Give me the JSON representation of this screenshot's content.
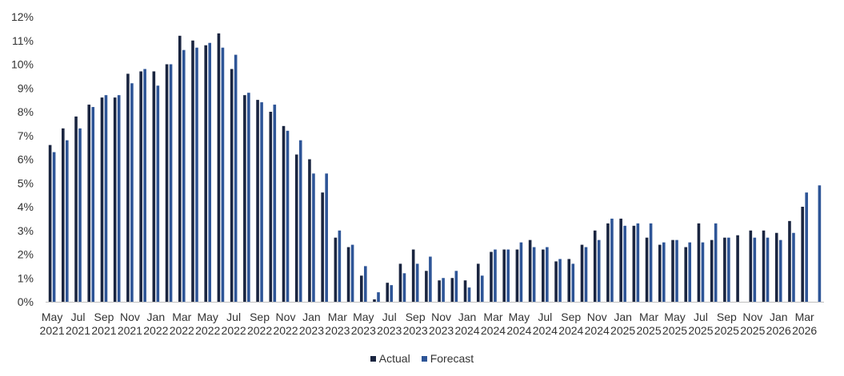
{
  "chart_data": {
    "type": "bar",
    "title": "",
    "xlabel": "",
    "ylabel": "",
    "ylim": [
      0,
      12
    ],
    "yticks": [
      "0%",
      "1%",
      "2%",
      "3%",
      "4%",
      "5%",
      "6%",
      "7%",
      "8%",
      "9%",
      "10%",
      "11%",
      "12%"
    ],
    "grid": false,
    "legend_position": "bottom",
    "categories": [
      "May 2021",
      "Jun 2021",
      "Jul 2021",
      "Aug 2021",
      "Sep 2021",
      "Oct 2021",
      "Nov 2021",
      "Dec 2021",
      "Jan 2022",
      "Feb 2022",
      "Mar 2022",
      "Apr 2022",
      "May 2022",
      "Jun 2022",
      "Jul 2022",
      "Aug 2022",
      "Sep 2022",
      "Oct 2022",
      "Nov 2022",
      "Dec 2022",
      "Jan 2023",
      "Feb 2023",
      "Mar 2023",
      "Apr 2023",
      "May 2023",
      "Jun 2023",
      "Jul 2023",
      "Aug 2023",
      "Sep 2023",
      "Oct 2023",
      "Nov 2023",
      "Dec 2023",
      "Jan 2024",
      "Feb 2024",
      "Mar 2024",
      "Apr 2024",
      "May 2024",
      "Jun 2024",
      "Jul 2024",
      "Aug 2024",
      "Sep 2024",
      "Oct 2024",
      "Nov 2024",
      "Dec 2024",
      "Jan 2025",
      "Feb 2025",
      "Mar 2025",
      "Apr 2025",
      "May 2025",
      "Jun 2025",
      "Jul 2025",
      "Aug 2025",
      "Sep 2025",
      "Oct 2025",
      "Nov 2025",
      "Dec 2025",
      "Jan 2026",
      "Feb 2026",
      "Mar 2026",
      "Apr 2026"
    ],
    "x_tick_labels": [
      {
        "month": "May",
        "year": "2021"
      },
      {
        "month": "Jul",
        "year": "2021"
      },
      {
        "month": "Sep",
        "year": "2021"
      },
      {
        "month": "Nov",
        "year": "2021"
      },
      {
        "month": "Jan",
        "year": "2022"
      },
      {
        "month": "Mar",
        "year": "2022"
      },
      {
        "month": "May",
        "year": "2022"
      },
      {
        "month": "Jul",
        "year": "2022"
      },
      {
        "month": "Sep",
        "year": "2022"
      },
      {
        "month": "Nov",
        "year": "2022"
      },
      {
        "month": "Jan",
        "year": "2023"
      },
      {
        "month": "Mar",
        "year": "2023"
      },
      {
        "month": "May",
        "year": "2023"
      },
      {
        "month": "Jul",
        "year": "2023"
      },
      {
        "month": "Sep",
        "year": "2023"
      },
      {
        "month": "Nov",
        "year": "2023"
      },
      {
        "month": "Jan",
        "year": "2024"
      },
      {
        "month": "Mar",
        "year": "2024"
      },
      {
        "month": "May",
        "year": "2024"
      },
      {
        "month": "Jul",
        "year": "2024"
      },
      {
        "month": "Sep",
        "year": "2024"
      },
      {
        "month": "Nov",
        "year": "2024"
      },
      {
        "month": "Jan",
        "year": "2025"
      },
      {
        "month": "Mar",
        "year": "2025"
      },
      {
        "month": "May",
        "year": "2025"
      },
      {
        "month": "Jul",
        "year": "2025"
      },
      {
        "month": "Sep",
        "year": "2025"
      },
      {
        "month": "Nov",
        "year": "2025"
      },
      {
        "month": "Jan",
        "year": "2026"
      },
      {
        "month": "Mar",
        "year": "2026"
      }
    ],
    "series": [
      {
        "name": "Actual",
        "color": "#1a2540",
        "values": [
          6.6,
          7.3,
          7.8,
          8.3,
          8.6,
          8.6,
          9.6,
          9.7,
          9.7,
          10.0,
          11.2,
          11.0,
          10.8,
          11.3,
          9.8,
          8.7,
          8.5,
          8.0,
          7.4,
          6.2,
          6.0,
          4.6,
          2.7,
          2.3,
          1.1,
          0.1,
          0.8,
          1.6,
          2.2,
          1.3,
          0.9,
          1.0,
          0.9,
          1.6,
          2.1,
          2.2,
          2.2,
          2.6,
          2.2,
          1.7,
          1.8,
          2.4,
          3.0,
          3.3,
          3.5,
          3.2,
          2.7,
          2.4,
          2.6,
          2.3,
          3.3,
          2.6,
          2.7,
          2.8,
          3.0,
          3.0,
          2.9,
          3.4,
          4.0,
          null
        ]
      },
      {
        "name": "Forecast",
        "color": "#2e5597",
        "values": [
          6.3,
          6.8,
          7.3,
          8.2,
          8.7,
          8.7,
          9.2,
          9.8,
          9.1,
          10.0,
          10.6,
          10.7,
          10.9,
          10.7,
          10.4,
          8.8,
          8.4,
          8.3,
          7.2,
          6.8,
          5.4,
          5.4,
          3.0,
          2.4,
          1.5,
          0.4,
          0.7,
          1.2,
          1.6,
          1.9,
          1.0,
          1.3,
          0.6,
          1.1,
          2.2,
          2.2,
          2.5,
          2.3,
          2.3,
          1.8,
          1.6,
          2.3,
          2.6,
          3.5,
          3.2,
          3.3,
          3.3,
          2.5,
          2.6,
          2.5,
          2.5,
          3.3,
          2.7,
          null,
          2.7,
          2.7,
          2.6,
          2.9,
          4.6,
          4.9
        ]
      }
    ]
  }
}
